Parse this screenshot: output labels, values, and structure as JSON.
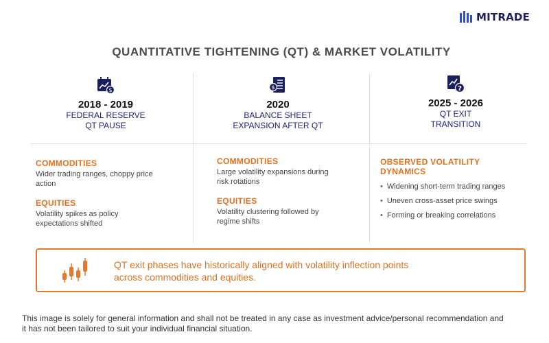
{
  "brand": {
    "name": "MITRADE"
  },
  "title": "QUANTITATIVE TIGHTENING (QT) & MARKET VOLATILITY",
  "columns": [
    {
      "year": "2018 - 2019",
      "subtitle_lines": [
        "FEDERAL RESERVE",
        "QT PAUSE"
      ],
      "icon": "calendar-chart-icon",
      "sections": [
        {
          "title": "COMMODITIES",
          "text_lines": [
            "Wider trading ranges, choppy price",
            "action"
          ]
        },
        {
          "title": "EQUITIES",
          "text_lines": [
            "Volatility spikes as policy",
            "expectations shifted"
          ]
        }
      ]
    },
    {
      "year": "2020",
      "subtitle_lines": [
        "BALANCE SHEET",
        "EXPANSION AFTER QT"
      ],
      "icon": "balance-sheet-icon",
      "sections": [
        {
          "title": "COMMODITIES",
          "text_lines": [
            "Large volatility expansions during",
            "risk rotations"
          ]
        },
        {
          "title": "EQUITIES",
          "text_lines": [
            "Volatility clustering followed by",
            "regime shifts"
          ]
        }
      ]
    },
    {
      "year": "2025 - 2026",
      "subtitle_lines": [
        "QT EXIT",
        "TRANSITION"
      ],
      "icon": "chart-question-icon",
      "sections": [
        {
          "title_lines": [
            "OBSERVED VOLATILITY",
            "DYNAMICS"
          ]
        }
      ],
      "bullets": [
        "Widening short-term trading ranges",
        "Uneven cross-asset price swings",
        "Forming or breaking correlations"
      ]
    }
  ],
  "callout": {
    "icon": "candlestick-icon",
    "text_lines": [
      "QT exit phases have historically aligned with volatility inflection points",
      "across commodities and equities."
    ]
  },
  "disclaimer_lines": [
    "This image is solely for general information and shall not be treated in any case as investment advice/personal recommendation and",
    "it has not been tailored to suit your individual financial situation."
  ],
  "colors": {
    "accent": "#e07020",
    "navy": "#1a1f7a"
  }
}
